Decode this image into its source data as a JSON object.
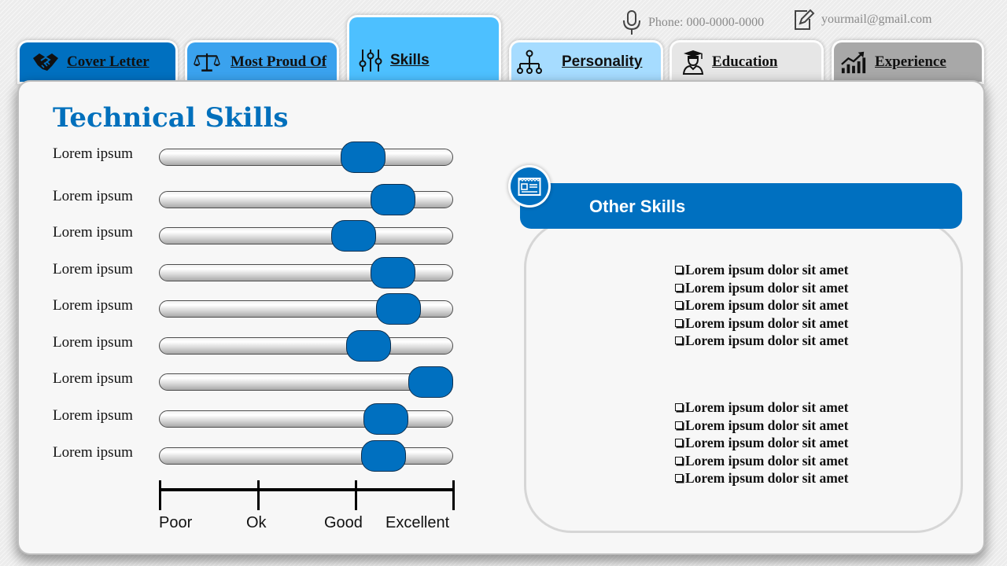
{
  "contact": {
    "phone": "Phone: 000-0000-0000",
    "email": "yourmail@gmail.com",
    "phone_icon": "microphone-icon",
    "email_icon": "edit-icon"
  },
  "tabs": [
    {
      "label": "Cover Letter",
      "icon": "handshake-icon",
      "color": "#0070c0"
    },
    {
      "label": "Most Proud Of",
      "icon": "scales-icon",
      "color": "#3aa2ee"
    },
    {
      "label": "Skills",
      "icon": "sliders-icon",
      "color": "#4dc0ff"
    },
    {
      "label": "Personality",
      "icon": "hierarchy-icon",
      "color": "#a6dcff"
    },
    {
      "label": "Education",
      "icon": "graduate-icon",
      "color": "#e6e6e6"
    },
    {
      "label": "Experience",
      "icon": "growth-chart-icon",
      "color": "#a8a8a8"
    }
  ],
  "title": "Technical Skills",
  "skills": [
    {
      "label": "Lorem ipsum",
      "level": 0.73
    },
    {
      "label": "Lorem ipsum",
      "level": 0.85
    },
    {
      "label": "Lorem ipsum",
      "level": 0.69
    },
    {
      "label": "Lorem ipsum",
      "level": 0.85
    },
    {
      "label": "Lorem ipsum",
      "level": 0.87
    },
    {
      "label": "Lorem ipsum",
      "level": 0.75
    },
    {
      "label": "Lorem ipsum",
      "level": 1.0
    },
    {
      "label": "Lorem ipsum",
      "level": 0.82
    },
    {
      "label": "Lorem ipsum",
      "level": 0.81
    }
  ],
  "scale": [
    "Poor",
    "Ok",
    "Good",
    "Excellent"
  ],
  "other_skills": {
    "title": "Other Skills",
    "icon": "id-card-icon",
    "group1": [
      "Lorem ipsum dolor sit amet",
      "Lorem ipsum dolor sit amet",
      "Lorem ipsum dolor sit amet",
      "Lorem ipsum dolor sit amet",
      "Lorem ipsum dolor sit amet"
    ],
    "group2": [
      "Lorem ipsum dolor sit amet",
      "Lorem ipsum dolor sit amet",
      "Lorem ipsum dolor sit amet",
      "Lorem ipsum dolor sit amet",
      "Lorem ipsum dolor sit amet"
    ]
  },
  "colors": {
    "accent": "#0070c0",
    "title": "#0170bc"
  }
}
